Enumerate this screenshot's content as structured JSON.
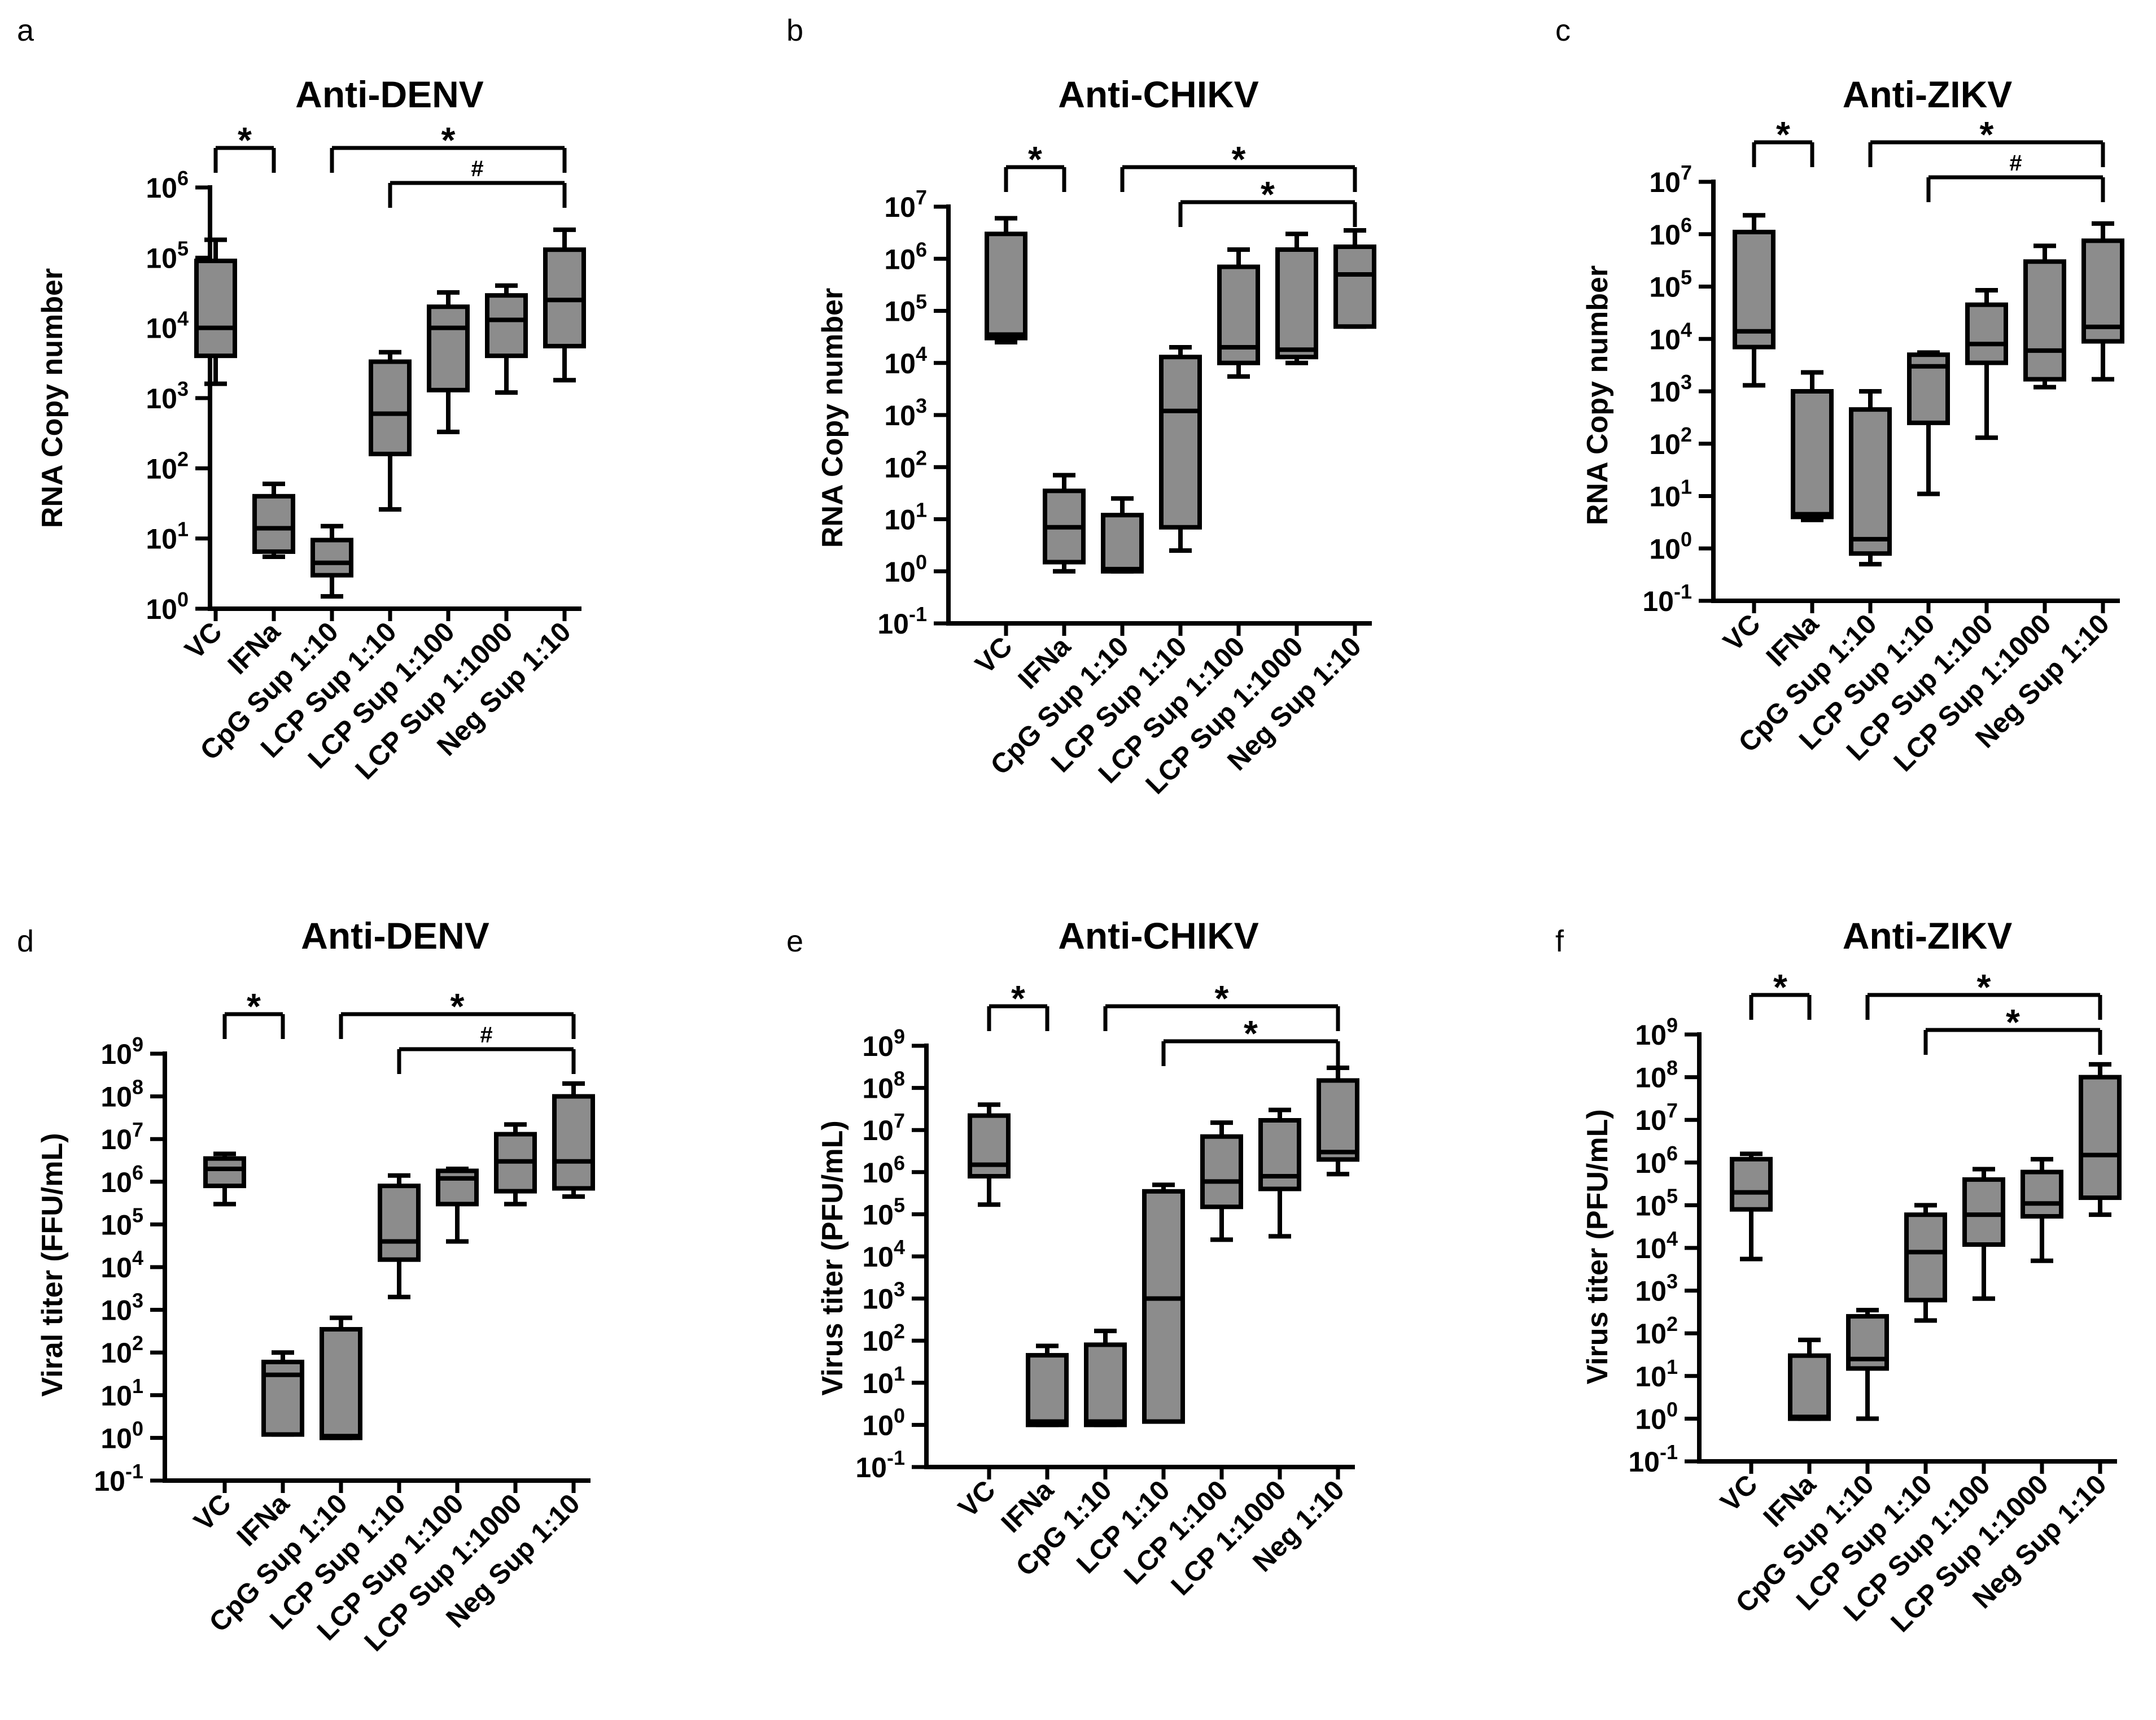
{
  "colors": {
    "box_fill": "#8c8c8c",
    "stroke": "#000000",
    "background": "#ffffff"
  },
  "chart_data": [
    {
      "panel": "a",
      "type": "box",
      "title": "Anti-DENV",
      "ylabel": "RNA Copy number",
      "xlabel": "",
      "yscale": "log",
      "ylim_exp": [
        0,
        6
      ],
      "categories": [
        "VC",
        "IFNa",
        "CpG Sup 1:10",
        "LCP Sup 1:10",
        "LCP Sup 1:100",
        "LCP Sup 1:1000",
        "Neg Sup 1:10"
      ],
      "boxes": [
        {
          "min": 1600,
          "q1": 4000,
          "median": 10000,
          "q3": 90000,
          "max": 180000
        },
        {
          "min": 5.5,
          "q1": 6.5,
          "median": 14,
          "q3": 40,
          "max": 60
        },
        {
          "min": 1.5,
          "q1": 3,
          "median": 4.5,
          "q3": 9.5,
          "max": 15
        },
        {
          "min": 26,
          "q1": 160,
          "median": 600,
          "q3": 3300,
          "max": 4500
        },
        {
          "min": 330,
          "q1": 1300,
          "median": 10000,
          "q3": 20000,
          "max": 32000
        },
        {
          "min": 1200,
          "q1": 4000,
          "median": 13000,
          "q3": 29000,
          "max": 40000
        },
        {
          "min": 1800,
          "q1": 5500,
          "median": 25000,
          "q3": 130000,
          "max": 250000
        }
      ],
      "annotations": [
        {
          "from": 0,
          "to": 1,
          "level": 0,
          "symbol": "*"
        },
        {
          "from": 2,
          "to": 6,
          "level": 0,
          "symbol": "*"
        },
        {
          "from": 3,
          "to": 6,
          "level": 1,
          "symbol": "#"
        }
      ]
    },
    {
      "panel": "b",
      "type": "box",
      "title": "Anti-CHIKV",
      "ylabel": "RNA Copy number",
      "xlabel": "",
      "yscale": "log",
      "ylim_exp": [
        -1,
        7
      ],
      "categories": [
        "VC",
        "IFNa",
        "CpG Sup 1:10",
        "LCP Sup 1:10",
        "LCP Sup 1:100",
        "LCP Sup 1:1000",
        "Neg Sup 1:10"
      ],
      "boxes": [
        {
          "min": 25000,
          "q1": 30000,
          "median": 35000,
          "q3": 3000000,
          "max": 6000000
        },
        {
          "min": 1,
          "q1": 1.5,
          "median": 7,
          "q3": 35,
          "max": 70
        },
        {
          "min": 1,
          "q1": 1,
          "median": 1.1,
          "q3": 12,
          "max": 25
        },
        {
          "min": 2.5,
          "q1": 7,
          "median": 1200,
          "q3": 13000,
          "max": 20000
        },
        {
          "min": 5500,
          "q1": 10000,
          "median": 20000,
          "q3": 700000,
          "max": 1500000
        },
        {
          "min": 10000,
          "q1": 13000,
          "median": 18000,
          "q3": 1500000,
          "max": 3000000
        },
        {
          "min": 50000,
          "q1": 50000,
          "median": 500000,
          "q3": 1700000,
          "max": 3500000
        }
      ],
      "annotations": [
        {
          "from": 0,
          "to": 1,
          "level": 0,
          "symbol": "*"
        },
        {
          "from": 2,
          "to": 6,
          "level": 0,
          "symbol": "*"
        },
        {
          "from": 3,
          "to": 6,
          "level": 1,
          "symbol": "*"
        }
      ]
    },
    {
      "panel": "c",
      "type": "box",
      "title": "Anti-ZIKV",
      "ylabel": "RNA Copy number",
      "xlabel": "",
      "yscale": "log",
      "ylim_exp": [
        -1,
        7
      ],
      "categories": [
        "VC",
        "IFNa",
        "CpG Sup 1:10",
        "LCP Sup 1:10",
        "LCP Sup 1:100",
        "LCP Sup 1:1000",
        "Neg Sup 1:10"
      ],
      "boxes": [
        {
          "min": 1300,
          "q1": 7000,
          "median": 14000,
          "q3": 1100000,
          "max": 2300000
        },
        {
          "min": 3.5,
          "q1": 4,
          "median": 4.5,
          "q3": 1000,
          "max": 2300
        },
        {
          "min": 0.5,
          "q1": 0.8,
          "median": 1.5,
          "q3": 450,
          "max": 1000
        },
        {
          "min": 11,
          "q1": 250,
          "median": 3000,
          "q3": 5000,
          "max": 5500
        },
        {
          "min": 130,
          "q1": 3500,
          "median": 8000,
          "q3": 45000,
          "max": 85000
        },
        {
          "min": 1200,
          "q1": 1700,
          "median": 6000,
          "q3": 300000,
          "max": 600000
        },
        {
          "min": 1700,
          "q1": 9000,
          "median": 17000,
          "q3": 750000,
          "max": 1600000
        }
      ],
      "annotations": [
        {
          "from": 0,
          "to": 1,
          "level": 0,
          "symbol": "*"
        },
        {
          "from": 2,
          "to": 6,
          "level": 0,
          "symbol": "*"
        },
        {
          "from": 3,
          "to": 6,
          "level": 1,
          "symbol": "#"
        }
      ]
    },
    {
      "panel": "d",
      "type": "box",
      "title": "Anti-DENV",
      "ylabel": "Viral titer (FFU/mL)",
      "xlabel": "",
      "yscale": "log",
      "ylim_exp": [
        -1,
        9
      ],
      "categories": [
        "VC",
        "IFNa",
        "CpG Sup 1:10",
        "LCP Sup 1:10",
        "LCP Sup 1:100",
        "LCP Sup 1:1000",
        "Neg Sup 1:10"
      ],
      "boxes": [
        {
          "min": 300000,
          "q1": 800000,
          "median": 2000000,
          "q3": 3500000,
          "max": 4500000
        },
        {
          "min": 1.2,
          "q1": 1.2,
          "median": 30,
          "q3": 60,
          "max": 100
        },
        {
          "min": 1,
          "q1": 1,
          "median": 1.1,
          "q3": 350,
          "max": 650
        },
        {
          "min": 2000,
          "q1": 15000,
          "median": 40000,
          "q3": 800000,
          "max": 1400000
        },
        {
          "min": 40000,
          "q1": 300000,
          "median": 1200000,
          "q3": 1800000,
          "max": 2000000
        },
        {
          "min": 300000,
          "q1": 600000,
          "median": 3000000,
          "q3": 13000000,
          "max": 22000000
        },
        {
          "min": 450000,
          "q1": 700000,
          "median": 3000000,
          "q3": 100000000,
          "max": 200000000
        }
      ],
      "annotations": [
        {
          "from": 0,
          "to": 1,
          "level": 0,
          "symbol": "*"
        },
        {
          "from": 2,
          "to": 6,
          "level": 0,
          "symbol": "*"
        },
        {
          "from": 3,
          "to": 6,
          "level": 1,
          "symbol": "#"
        }
      ]
    },
    {
      "panel": "e",
      "type": "box",
      "title": "Anti-CHIKV",
      "ylabel": "Virus titer (PFU/mL)",
      "xlabel": "",
      "yscale": "log",
      "ylim_exp": [
        -1,
        9
      ],
      "categories": [
        "VC",
        "IFNa",
        "CpG 1:10",
        "LCP 1:10",
        "LCP 1:100",
        "LCP 1:1000",
        "Neg 1:10"
      ],
      "boxes": [
        {
          "min": 170000,
          "q1": 800000,
          "median": 1500000,
          "q3": 22000000,
          "max": 40000000
        },
        {
          "min": 1,
          "q1": 1,
          "median": 1.2,
          "q3": 45,
          "max": 75
        },
        {
          "min": 1,
          "q1": 1,
          "median": 1.2,
          "q3": 80,
          "max": 170
        },
        {
          "min": 1.2,
          "q1": 1.2,
          "median": 1000,
          "q3": 350000,
          "max": 500000
        },
        {
          "min": 25000,
          "q1": 150000,
          "median": 600000,
          "q3": 7000000,
          "max": 15000000
        },
        {
          "min": 30000,
          "q1": 400000,
          "median": 800000,
          "q3": 17000000,
          "max": 30000000
        },
        {
          "min": 900000,
          "q1": 2000000,
          "median": 3000000,
          "q3": 150000000,
          "max": 300000000
        }
      ],
      "annotations": [
        {
          "from": 0,
          "to": 1,
          "level": 0,
          "symbol": "*"
        },
        {
          "from": 2,
          "to": 6,
          "level": 0,
          "symbol": "*"
        },
        {
          "from": 3,
          "to": 6,
          "level": 1,
          "symbol": "*"
        }
      ]
    },
    {
      "panel": "f",
      "type": "box",
      "title": "Anti-ZIKV",
      "ylabel": "Virus titer (PFU/mL)",
      "xlabel": "",
      "yscale": "log",
      "ylim_exp": [
        -1,
        9
      ],
      "categories": [
        "VC",
        "IFNa",
        "CpG Sup 1:10",
        "LCP Sup 1:10",
        "LCP Sup 1:100",
        "LCP Sup 1:1000",
        "Neg Sup 1:10"
      ],
      "boxes": [
        {
          "min": 5500,
          "q1": 80000,
          "median": 200000,
          "q3": 1200000,
          "max": 1600000
        },
        {
          "min": 1,
          "q1": 1,
          "median": 1.1,
          "q3": 30,
          "max": 70
        },
        {
          "min": 1,
          "q1": 15,
          "median": 25,
          "q3": 250,
          "max": 350
        },
        {
          "min": 200,
          "q1": 600,
          "median": 8000,
          "q3": 60000,
          "max": 100000
        },
        {
          "min": 650,
          "q1": 12000,
          "median": 60000,
          "q3": 400000,
          "max": 700000
        },
        {
          "min": 5000,
          "q1": 55000,
          "median": 110000,
          "q3": 600000,
          "max": 1200000
        },
        {
          "min": 60000,
          "q1": 150000,
          "median": 1500000,
          "q3": 100000000,
          "max": 200000000
        }
      ],
      "annotations": [
        {
          "from": 0,
          "to": 1,
          "level": 0,
          "symbol": "*"
        },
        {
          "from": 2,
          "to": 6,
          "level": 0,
          "symbol": "*"
        },
        {
          "from": 3,
          "to": 6,
          "level": 1,
          "symbol": "*"
        }
      ]
    }
  ]
}
